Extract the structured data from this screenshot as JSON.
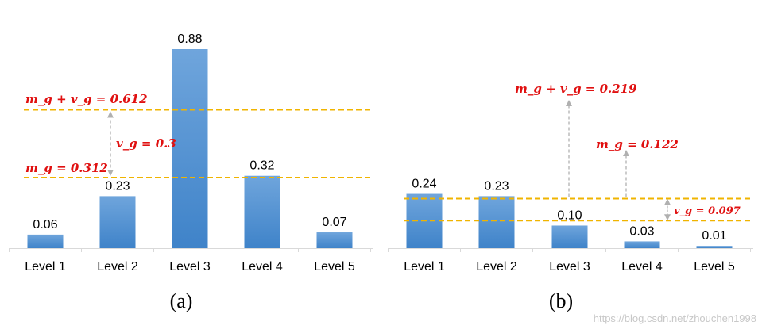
{
  "colors": {
    "bar_top": "#6fa5dc",
    "bar_bottom": "#3f83c9",
    "dashed_line": "#f0b400",
    "arrow": "#b0b0b0",
    "annotation": "#e01010"
  },
  "watermark": "https://blog.csdn.net/zhouchen1998",
  "chart_data": [
    {
      "type": "bar",
      "panel_label": "(a)",
      "categories": [
        "Level 1",
        "Level 2",
        "Level 3",
        "Level 4",
        "Level 5"
      ],
      "values": [
        0.06,
        0.23,
        0.88,
        0.32,
        0.07
      ],
      "value_labels": [
        "0.06",
        "0.23",
        "0.88",
        "0.32",
        "0.07"
      ],
      "ylim": [
        0,
        0.9
      ],
      "grid": false,
      "reference_lines": [
        {
          "value": 0.612,
          "style": "dashed"
        },
        {
          "value": 0.312,
          "style": "dashed"
        }
      ],
      "annotations": [
        {
          "text": "m_g + v_g = 0.612"
        },
        {
          "text": "v_g = 0.3"
        },
        {
          "text": "m_g = 0.312"
        }
      ]
    },
    {
      "type": "bar",
      "panel_label": "(b)",
      "categories": [
        "Level 1",
        "Level 2",
        "Level 3",
        "Level 4",
        "Level 5"
      ],
      "values": [
        0.24,
        0.23,
        0.1,
        0.03,
        0.01
      ],
      "value_labels": [
        "0.24",
        "0.23",
        "0.10",
        "0.03",
        "0.01"
      ],
      "ylim": [
        0,
        0.9
      ],
      "grid": false,
      "reference_lines": [
        {
          "value": 0.219,
          "style": "dashed"
        },
        {
          "value": 0.122,
          "style": "dashed"
        }
      ],
      "annotations": [
        {
          "text": "m_g + v_g = 0.219"
        },
        {
          "text": "m_g = 0.122"
        },
        {
          "text": "v_g = 0.097"
        }
      ]
    }
  ]
}
